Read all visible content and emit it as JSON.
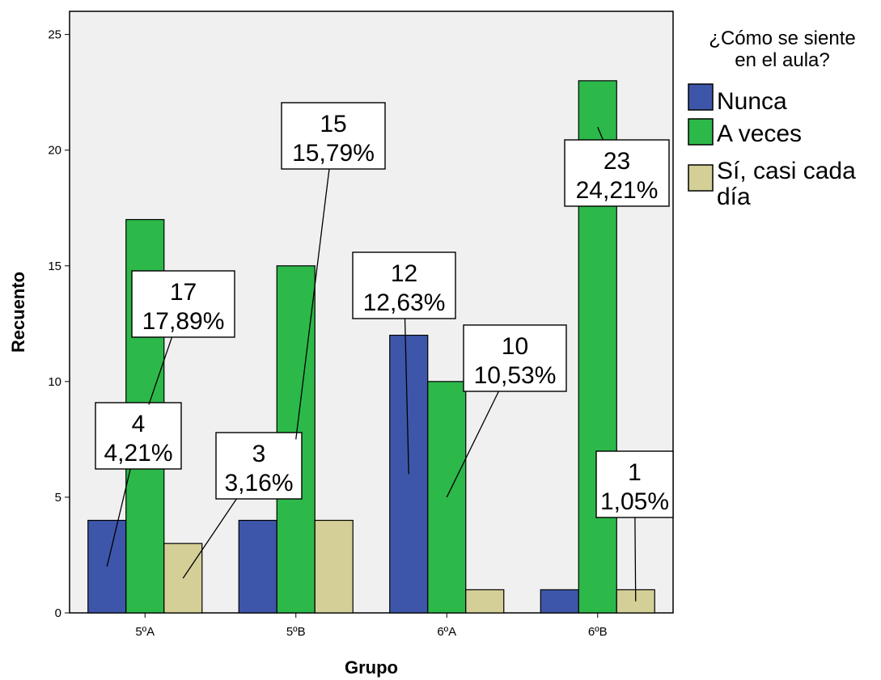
{
  "chart_data": {
    "type": "bar",
    "xlabel": "Grupo",
    "ylabel": "Recuento",
    "ylim": [
      0,
      26
    ],
    "yticks": [
      "0",
      "5",
      "10",
      "15",
      "20",
      "25"
    ],
    "grid": false,
    "categories": [
      "5ºA",
      "5ºB",
      "6ºA",
      "6ºB"
    ],
    "legend": {
      "title_line1": "¿Cómo se siente",
      "title_line2": "en el aula?",
      "position": "right"
    },
    "series": [
      {
        "name": "Nunca",
        "color": "#3e56a9",
        "values": [
          4,
          4,
          12,
          1
        ],
        "labels": [
          {
            "category": "5ºA",
            "count": "4",
            "percent": "4,21%"
          },
          null,
          {
            "category": "6ºA",
            "count": "12",
            "percent": "12,63%"
          },
          null
        ]
      },
      {
        "name": "A veces",
        "color": "#2db84a",
        "values": [
          17,
          15,
          10,
          23
        ],
        "labels": [
          {
            "category": "5ºA",
            "count": "17",
            "percent": "17,89%"
          },
          {
            "category": "5ºB",
            "count": "15",
            "percent": "15,79%"
          },
          {
            "category": "6ºA",
            "count": "10",
            "percent": "10,53%"
          },
          {
            "category": "6ºB",
            "count": "23",
            "percent": "24,21%"
          }
        ]
      },
      {
        "name_line1": "Sí, casi cada",
        "name_line2": "día",
        "color": "#d3cf96",
        "values": [
          3,
          4,
          1,
          1
        ],
        "labels": [
          {
            "category": "5ºA",
            "count": "3",
            "percent": "3,16%"
          },
          null,
          null,
          {
            "category": "6ºB",
            "count": "1",
            "percent": "1,05%"
          }
        ]
      }
    ]
  }
}
